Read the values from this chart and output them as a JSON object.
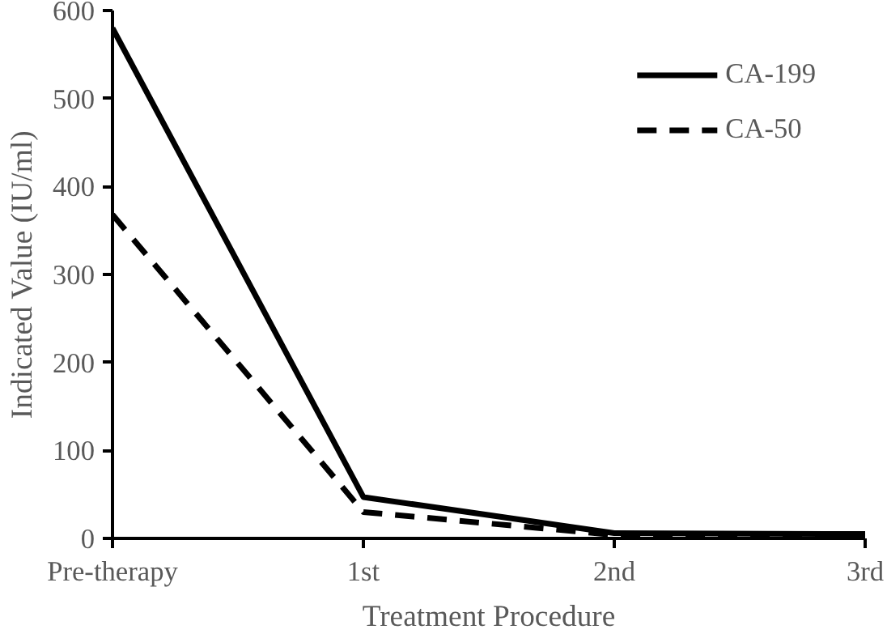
{
  "chart_data": {
    "type": "line",
    "xlabel": "Treatment Procedure",
    "ylabel": "Indicated Value (IU/ml)",
    "categories": [
      "Pre-therapy",
      "1st",
      "2nd",
      "3rd"
    ],
    "series": [
      {
        "name": "CA-199",
        "color": "#000000",
        "values": [
          580,
          47,
          6,
          5
        ],
        "line_style": "solid"
      },
      {
        "name": "CA-50",
        "color": "#000000",
        "values": [
          368,
          30,
          4,
          3
        ],
        "line_style": "dashed"
      }
    ],
    "ylim": [
      0,
      600
    ],
    "yticks": [
      0,
      100,
      200,
      300,
      400,
      500,
      600
    ],
    "grid": false,
    "legend": "top right",
    "marker": "none"
  }
}
